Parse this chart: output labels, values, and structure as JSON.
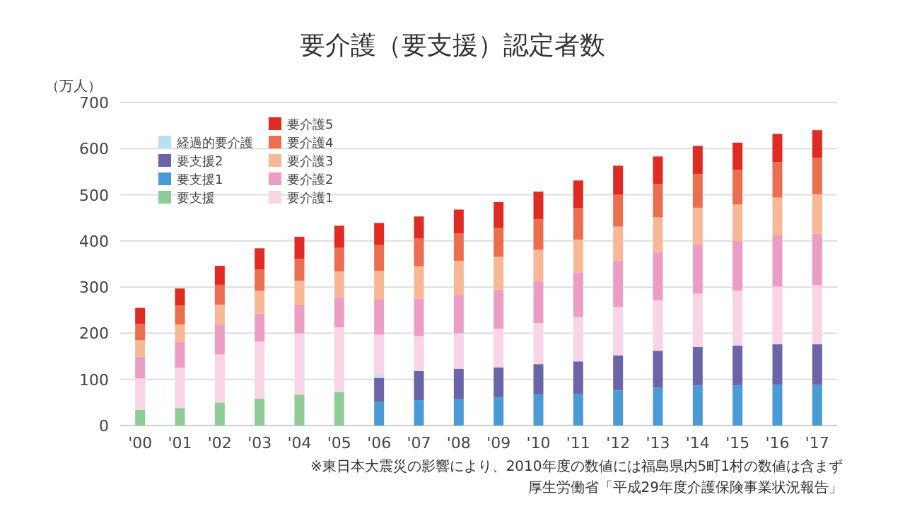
{
  "chart_data": {
    "type": "bar",
    "title": "要介護（要支援）認定者数",
    "ylabel": "（万人）",
    "stacked": true,
    "categories": [
      "'00",
      "'01",
      "'02",
      "'03",
      "'04",
      "'05",
      "'06",
      "'07",
      "'08",
      "'09",
      "'10",
      "'11",
      "'12",
      "'13",
      "'14",
      "'15",
      "'16",
      "'17"
    ],
    "series": [
      {
        "name": "要支援",
        "color": "#8fcb96",
        "values": [
          34,
          38,
          50,
          58,
          67,
          73,
          null,
          null,
          null,
          null,
          null,
          null,
          null,
          null,
          null,
          null,
          null,
          null
        ]
      },
      {
        "name": "要支援1",
        "color": "#4a9ad6",
        "values": [
          null,
          null,
          null,
          null,
          null,
          null,
          51,
          55,
          57,
          61,
          67,
          69,
          76,
          82,
          87,
          87,
          89,
          88
        ]
      },
      {
        "name": "要支援2",
        "color": "#6a64a8",
        "values": [
          null,
          null,
          null,
          null,
          null,
          null,
          52,
          63,
          66,
          65,
          66,
          70,
          76,
          80,
          83,
          86,
          87,
          88
        ]
      },
      {
        "name": "経過的要介護",
        "color": "#b8e0f5",
        "values": [
          null,
          null,
          null,
          null,
          null,
          null,
          6,
          null,
          null,
          null,
          null,
          null,
          null,
          null,
          null,
          null,
          null,
          null
        ]
      },
      {
        "name": "要介護1",
        "color": "#f8d4e4",
        "values": [
          68,
          87,
          104,
          124,
          133,
          140,
          88,
          76,
          77,
          84,
          89,
          96,
          105,
          109,
          116,
          119,
          125,
          128
        ]
      },
      {
        "name": "要介護2",
        "color": "#ec9dc4",
        "values": [
          47,
          56,
          66,
          61,
          62,
          64,
          77,
          81,
          83,
          85,
          91,
          97,
          100,
          105,
          107,
          108,
          111,
          112
        ]
      },
      {
        "name": "要介護3",
        "color": "#f6b896",
        "values": [
          36,
          38,
          42,
          49,
          52,
          57,
          61,
          70,
          74,
          71,
          68,
          71,
          74,
          75,
          79,
          79,
          82,
          85
        ]
      },
      {
        "name": "要介護4",
        "color": "#ea6e50",
        "values": [
          35,
          41,
          43,
          46,
          47,
          51,
          56,
          60,
          59,
          62,
          66,
          68,
          69,
          72,
          73,
          75,
          77,
          79
        ]
      },
      {
        "name": "要介護5",
        "color": "#e02a24",
        "values": [
          35,
          37,
          41,
          46,
          48,
          48,
          48,
          48,
          52,
          56,
          60,
          60,
          63,
          60,
          61,
          59,
          61,
          60
        ]
      }
    ],
    "ylim": [
      0,
      700
    ],
    "yticks": [
      0,
      100,
      200,
      300,
      400,
      500,
      600,
      700
    ],
    "grid": "y",
    "legend": "top left",
    "annotations": [
      "※東日本大震災の影響により、2010年度の数値には福島県内5町1村の数値は含まず",
      "厚生労働省「平成29年度介護保険事業状況報告」"
    ]
  }
}
